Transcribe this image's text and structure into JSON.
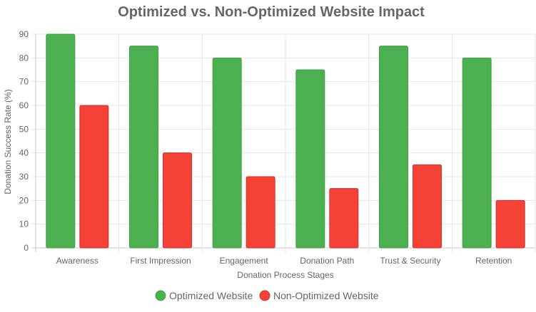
{
  "chart_data": {
    "type": "bar",
    "title": "Optimized vs. Non-Optimized Website Impact",
    "xlabel": "Donation Process Stages",
    "ylabel": "Donation Success Rate (%)",
    "ylim": [
      0,
      90
    ],
    "yticks": [
      0,
      10,
      20,
      30,
      40,
      50,
      60,
      70,
      80,
      90
    ],
    "grid": true,
    "legend_position": "bottom",
    "categories": [
      "Awareness",
      "First Impression",
      "Engagement",
      "Donation Path",
      "Trust & Security",
      "Retention"
    ],
    "series": [
      {
        "name": "Optimized Website",
        "color": "#4caf50",
        "border": "#43a047",
        "values": [
          90,
          85,
          80,
          75,
          85,
          80
        ]
      },
      {
        "name": "Non-Optimized Website",
        "color": "#f44336",
        "border": "#d32f2f",
        "values": [
          60,
          40,
          30,
          25,
          35,
          20
        ]
      }
    ]
  }
}
